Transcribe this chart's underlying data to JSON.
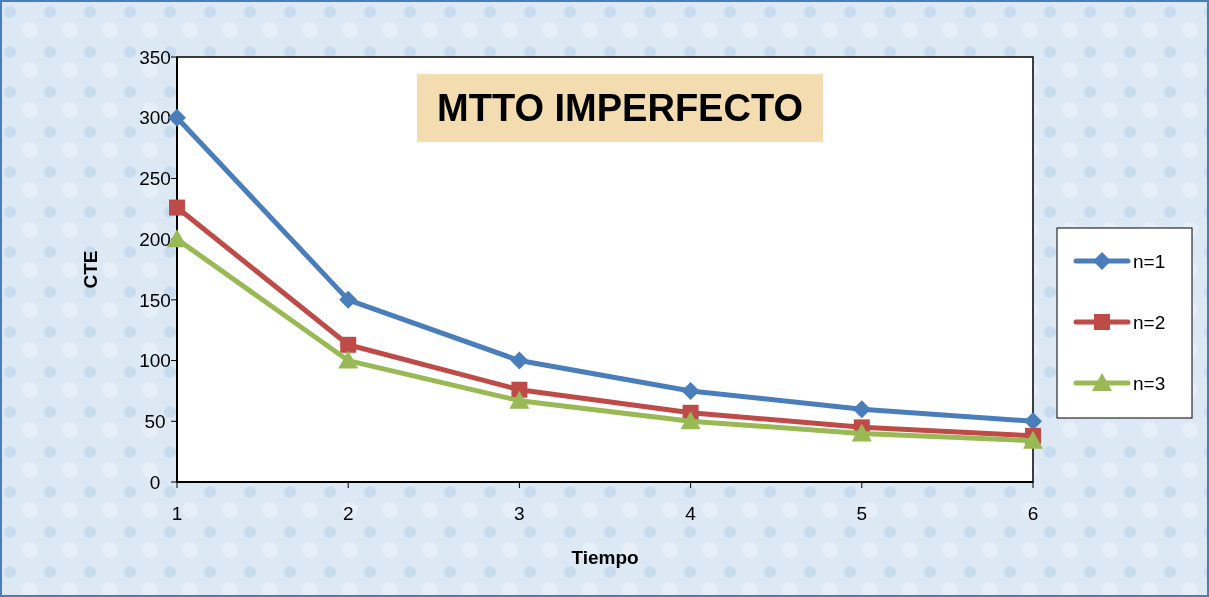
{
  "chart_data": {
    "type": "line",
    "title": "MTTO IMPERFECTO",
    "xlabel": "Tiempo",
    "ylabel": "CTE",
    "x": [
      1,
      2,
      3,
      4,
      5,
      6
    ],
    "series": [
      {
        "name": "n=1",
        "color": "#4a7ebb",
        "marker": "diamond",
        "values": [
          300,
          150,
          100,
          75,
          60,
          50
        ]
      },
      {
        "name": "n=2",
        "color": "#be4b48",
        "marker": "square",
        "values": [
          226,
          113,
          76,
          57,
          45,
          38
        ]
      },
      {
        "name": "n=3",
        "color": "#98b954",
        "marker": "triangle",
        "values": [
          200,
          100,
          67,
          50,
          40,
          34
        ]
      }
    ],
    "xlim": [
      1,
      6
    ],
    "xticks": [
      1,
      2,
      3,
      4,
      5,
      6
    ],
    "ylim": [
      0,
      350
    ],
    "yticks": [
      0,
      50,
      100,
      150,
      200,
      250,
      300,
      350
    ],
    "grid": false,
    "legend": "right",
    "line_style": "solid"
  }
}
